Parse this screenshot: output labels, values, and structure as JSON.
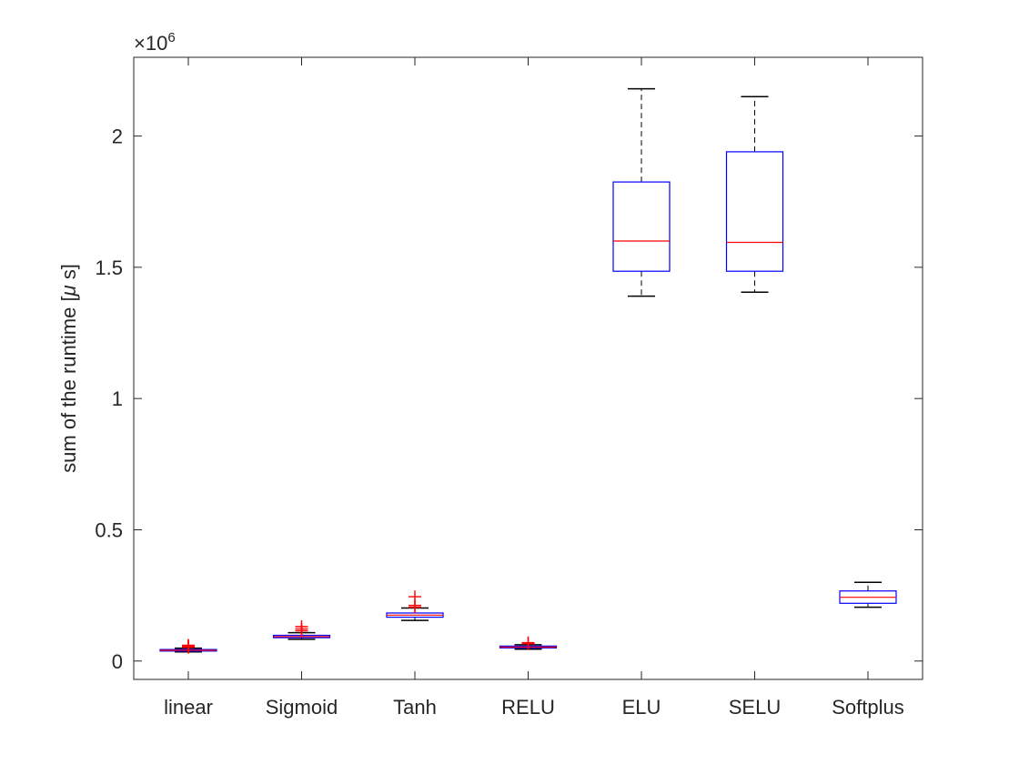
{
  "chart_data": {
    "type": "box",
    "categories": [
      "linear",
      "Sigmoid",
      "Tanh",
      "RELU",
      "ELU",
      "SELU",
      "Softplus"
    ],
    "ylabel_prefix": "sum of the runtime [",
    "ylabel_mu": "μ",
    "ylabel_suffix": " s]",
    "multiplier_base": "×10",
    "multiplier_exp": "6",
    "y_ticks": [
      0,
      0.5,
      1,
      1.5,
      2
    ],
    "y_tick_labels": [
      "0",
      "0.5",
      "1",
      "1.5",
      "2"
    ],
    "ylim": [
      -0.07,
      2.3
    ],
    "grid": false,
    "boxes": [
      {
        "name": "linear",
        "whisker_low": 0.035,
        "q1": 0.038,
        "median": 0.041,
        "q3": 0.044,
        "whisker_high": 0.049,
        "outliers": [
          0.052,
          0.055,
          0.058,
          0.06
        ]
      },
      {
        "name": "Sigmoid",
        "whisker_low": 0.083,
        "q1": 0.089,
        "median": 0.093,
        "q3": 0.098,
        "whisker_high": 0.108,
        "outliers": [
          0.115,
          0.122,
          0.131
        ]
      },
      {
        "name": "Tanh",
        "whisker_low": 0.155,
        "q1": 0.167,
        "median": 0.175,
        "q3": 0.183,
        "whisker_high": 0.202,
        "outliers": [
          0.205,
          0.212,
          0.245
        ]
      },
      {
        "name": "RELU",
        "whisker_low": 0.045,
        "q1": 0.05,
        "median": 0.053,
        "q3": 0.057,
        "whisker_high": 0.062,
        "outliers": [
          0.066,
          0.07
        ]
      },
      {
        "name": "ELU",
        "whisker_low": 1.39,
        "q1": 1.485,
        "median": 1.6,
        "q3": 1.825,
        "whisker_high": 2.18,
        "outliers": []
      },
      {
        "name": "SELU",
        "whisker_low": 1.405,
        "q1": 1.485,
        "median": 1.595,
        "q3": 1.94,
        "whisker_high": 2.15,
        "outliers": []
      },
      {
        "name": "Softplus",
        "whisker_low": 0.205,
        "q1": 0.22,
        "median": 0.243,
        "q3": 0.267,
        "whisker_high": 0.3,
        "outliers": []
      }
    ],
    "colors": {
      "box": "#0000ff",
      "median": "#ff0000",
      "whisker": "#000000",
      "outlier": "#ff0000",
      "axes": "#262626"
    }
  }
}
